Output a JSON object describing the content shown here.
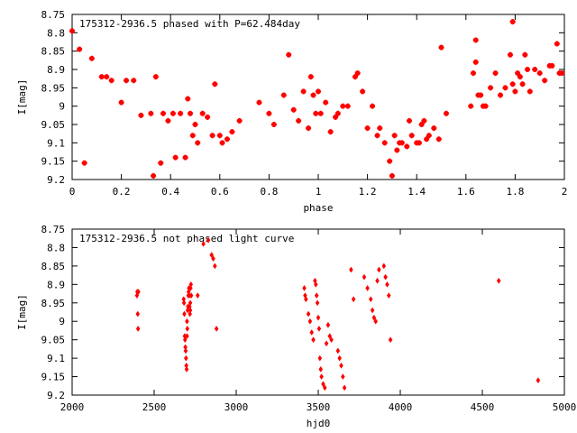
{
  "chart_data": [
    {
      "type": "scatter",
      "title": "175312-2936.5 phased with P=62.484day",
      "xlabel": "phase",
      "ylabel": "I[mag]",
      "xlim": [
        0,
        2
      ],
      "ylim": [
        8.75,
        9.2
      ],
      "y_inverted": true,
      "xticks": [
        "0",
        "0.2",
        "0.4",
        "0.6",
        "0.8",
        "1",
        "1.2",
        "1.4",
        "1.6",
        "1.8",
        "2"
      ],
      "yticks": [
        "8.75",
        "8.8",
        "8.85",
        "8.9",
        "8.95",
        "9",
        "9.05",
        "9.1",
        "9.15",
        "9.2"
      ],
      "marker_color": "#ff0000",
      "marker": "cross",
      "grid": false,
      "series": [
        {
          "x": [
            0.0,
            0.03,
            0.05,
            0.08,
            0.14,
            0.16,
            0.2,
            0.22,
            0.25,
            0.28,
            0.32,
            0.33,
            0.36,
            0.37,
            0.39,
            0.41,
            0.42,
            0.44,
            0.46,
            0.47,
            0.48,
            0.49,
            0.5,
            0.51,
            0.53,
            0.55,
            0.57,
            0.58,
            0.6,
            0.61,
            0.63,
            0.65,
            0.68,
            0.76,
            0.8,
            0.82,
            0.86,
            0.88,
            0.9,
            0.92,
            0.94,
            0.96,
            0.97,
            0.98,
            0.99,
            1.0,
            1.01,
            1.03,
            1.05,
            1.07,
            1.08,
            1.1,
            1.12,
            1.15,
            1.16,
            1.18,
            1.2,
            1.22,
            1.24,
            1.25,
            1.27,
            1.29,
            1.3,
            1.31,
            1.32,
            1.33,
            1.34,
            1.36,
            1.37,
            1.38,
            1.4,
            1.41,
            1.42,
            1.43,
            1.44,
            1.45,
            1.47,
            1.49,
            1.5,
            1.52,
            1.62,
            1.63,
            1.64,
            1.65,
            1.66,
            1.67,
            1.68,
            1.7,
            1.72,
            1.74,
            1.76,
            1.78,
            1.79,
            1.8,
            1.81,
            1.82,
            1.83,
            1.84,
            1.85,
            1.86,
            1.88,
            1.9,
            1.92,
            1.94,
            1.95,
            1.97,
            1.98,
            1.99,
            0.12,
            0.34,
            1.64,
            1.79
          ],
          "y": [
            8.795,
            8.845,
            9.155,
            8.87,
            8.92,
            8.93,
            8.99,
            8.93,
            8.93,
            9.025,
            9.02,
            9.19,
            9.155,
            9.02,
            9.04,
            9.02,
            9.14,
            9.02,
            9.14,
            8.98,
            9.02,
            9.08,
            9.05,
            9.1,
            9.02,
            9.03,
            9.08,
            8.94,
            9.08,
            9.1,
            9.09,
            9.07,
            9.04,
            8.99,
            9.02,
            9.05,
            8.97,
            8.86,
            9.01,
            9.04,
            8.96,
            9.06,
            8.92,
            8.97,
            9.02,
            8.96,
            9.02,
            8.99,
            9.07,
            9.03,
            9.02,
            9.0,
            9.0,
            8.92,
            8.91,
            8.96,
            9.06,
            9.0,
            9.08,
            9.06,
            9.1,
            9.15,
            9.19,
            9.08,
            9.12,
            9.1,
            9.1,
            9.11,
            9.04,
            9.08,
            9.1,
            9.1,
            9.05,
            9.04,
            9.09,
            9.08,
            9.06,
            9.09,
            8.84,
            9.02,
            9.0,
            8.91,
            8.88,
            8.97,
            8.97,
            9.0,
            9.0,
            8.95,
            8.91,
            8.97,
            8.95,
            8.86,
            8.94,
            8.96,
            8.91,
            8.92,
            8.94,
            8.86,
            8.9,
            8.96,
            8.9,
            8.91,
            8.93,
            8.89,
            8.89,
            8.83,
            8.91,
            8.91,
            8.92,
            8.92,
            8.82,
            8.77
          ]
        }
      ]
    },
    {
      "type": "scatter",
      "title": "175312-2936.5 not phased light curve",
      "xlabel": "hjd0",
      "ylabel": "I[mag]",
      "xlim": [
        2000,
        5000
      ],
      "ylim": [
        8.75,
        9.2
      ],
      "y_inverted": true,
      "xticks": [
        "2000",
        "2500",
        "3000",
        "3500",
        "4000",
        "4500",
        "5000"
      ],
      "yticks": [
        "8.75",
        "8.8",
        "8.85",
        "8.9",
        "8.95",
        "9",
        "9.05",
        "9.1",
        "9.15",
        "9.2"
      ],
      "marker_color": "#ff0000",
      "marker": "diamond",
      "grid": false,
      "series": [
        {
          "x": [
            2395,
            2397,
            2400,
            2402,
            2404,
            2680,
            2682,
            2684,
            2686,
            2688,
            2690,
            2692,
            2694,
            2696,
            2698,
            2700,
            2700,
            2702,
            2704,
            2706,
            2708,
            2710,
            2712,
            2714,
            2716,
            2718,
            2720,
            2720,
            2722,
            2724,
            2726,
            2765,
            2800,
            2830,
            2850,
            2860,
            2870,
            2880,
            3415,
            3420,
            3425,
            3440,
            3450,
            3460,
            3470,
            3480,
            3485,
            3490,
            3495,
            3500,
            3505,
            3510,
            3515,
            3520,
            3530,
            3540,
            3550,
            3560,
            3570,
            3580,
            3620,
            3630,
            3640,
            3650,
            3660,
            3700,
            3715,
            3780,
            3800,
            3820,
            3830,
            3840,
            3850,
            3860,
            3870,
            3900,
            3910,
            3920,
            3930,
            3940,
            4600,
            4840
          ],
          "y": [
            8.93,
            8.92,
            8.98,
            9.02,
            8.92,
            8.94,
            8.95,
            8.98,
            9.04,
            9.05,
            9.07,
            9.08,
            9.1,
            9.12,
            9.13,
            9.04,
            9.0,
            9.02,
            8.97,
            8.96,
            8.93,
            8.92,
            8.91,
            8.93,
            8.96,
            8.98,
            8.97,
            8.95,
            8.91,
            8.9,
            8.93,
            8.93,
            8.79,
            8.78,
            8.82,
            8.83,
            8.85,
            9.02,
            8.91,
            8.93,
            8.94,
            8.98,
            9.0,
            9.03,
            9.05,
            8.89,
            8.9,
            8.93,
            8.95,
            8.99,
            9.02,
            9.1,
            9.13,
            9.15,
            9.17,
            9.18,
            9.06,
            9.01,
            9.04,
            9.05,
            9.08,
            9.1,
            9.12,
            9.15,
            9.18,
            8.86,
            8.94,
            8.88,
            8.91,
            8.94,
            8.97,
            8.99,
            9.0,
            8.89,
            8.86,
            8.85,
            8.88,
            8.9,
            8.93,
            9.05,
            8.89,
            9.16
          ]
        }
      ]
    }
  ]
}
